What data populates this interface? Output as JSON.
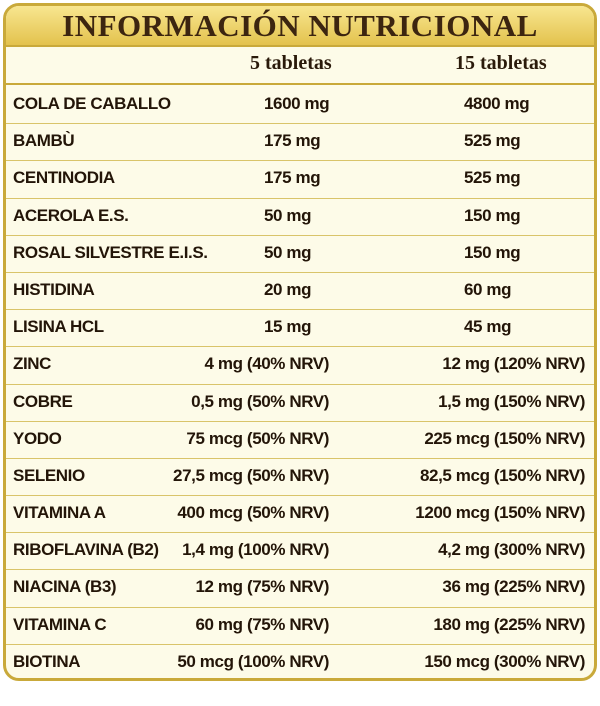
{
  "title": "INFORMACIÓN NUTRICIONAL",
  "columns": [
    "5 tabletas",
    "15 tabletas"
  ],
  "rows": [
    {
      "name": "COLA DE CABALLO",
      "v5": "1600 mg",
      "v15": "4800 mg",
      "centered": true
    },
    {
      "name": "BAMBÙ",
      "v5": "175 mg",
      "v15": "525 mg",
      "centered": true
    },
    {
      "name": "CENTINODIA",
      "v5": "175 mg",
      "v15": "525 mg",
      "centered": true
    },
    {
      "name": "ACEROLA E.S.",
      "v5": "50 mg",
      "v15": "150 mg",
      "centered": true
    },
    {
      "name": "ROSAL SILVESTRE E.I.S.",
      "v5": "50 mg",
      "v15": "150 mg",
      "centered": true
    },
    {
      "name": "HISTIDINA",
      "v5": "20 mg",
      "v15": "60 mg",
      "centered": true
    },
    {
      "name": "LISINA HCL",
      "v5": "15 mg",
      "v15": "45 mg",
      "centered": true
    },
    {
      "name": "ZINC",
      "v5": "4 mg (40% NRV)",
      "v15": "12 mg (120% NRV)",
      "centered": false
    },
    {
      "name": "COBRE",
      "v5": "0,5 mg (50% NRV)",
      "v15": "1,5 mg (150% NRV)",
      "centered": false
    },
    {
      "name": "YODO",
      "v5": "75 mcg (50% NRV)",
      "v15": "225 mcg (150% NRV)",
      "centered": false
    },
    {
      "name": "SELENIO",
      "v5": "27,5 mcg (50% NRV)",
      "v15": "82,5 mcg (150% NRV)",
      "centered": false
    },
    {
      "name": "VITAMINA A",
      "v5": "400 mcg (50% NRV)",
      "v15": "1200 mcg (150% NRV)",
      "centered": false
    },
    {
      "name": "RIBOFLAVINA (B2)",
      "v5": "1,4 mg (100% NRV)",
      "v15": "4,2 mg (300% NRV)",
      "centered": false
    },
    {
      "name": "NIACINA (B3)",
      "v5": "12 mg (75% NRV)",
      "v15": "36 mg (225% NRV)",
      "centered": false
    },
    {
      "name": "VITAMINA C",
      "v5": "60 mg (75% NRV)",
      "v15": "180 mg (225% NRV)",
      "centered": false
    },
    {
      "name": "BIOTINA",
      "v5": "50 mcg (100% NRV)",
      "v15": "150 mcg (300% NRV)",
      "centered": false
    }
  ]
}
